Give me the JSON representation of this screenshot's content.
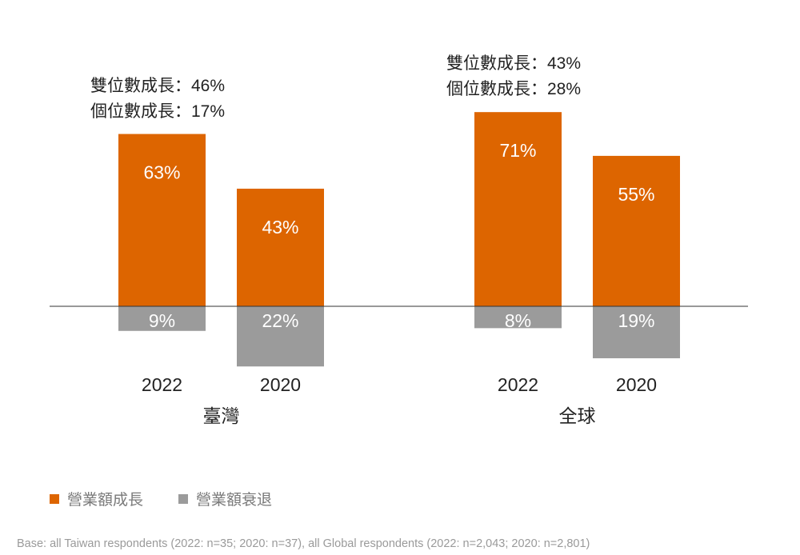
{
  "chart_data": {
    "type": "bar",
    "title": "",
    "groups": [
      {
        "name": "臺灣",
        "annotation": [
          "雙位數成長：46%",
          "個位數成長：17%"
        ]
      },
      {
        "name": "全球",
        "annotation": [
          "雙位數成長：43%",
          "個位數成長：28%"
        ]
      }
    ],
    "categories": [
      "2022",
      "2020"
    ],
    "series": [
      {
        "name": "營業額成長",
        "color": "#dd6500",
        "values": [
          [
            63,
            43
          ],
          [
            71,
            55
          ]
        ],
        "labels": [
          [
            "63%",
            "43%"
          ],
          [
            "71%",
            "55%"
          ]
        ]
      },
      {
        "name": "營業額衰退",
        "color": "#9b9b9b",
        "values": [
          [
            -9,
            -22
          ],
          [
            -8,
            -19
          ]
        ],
        "labels": [
          [
            "9%",
            "22%"
          ],
          [
            "8%",
            "19%"
          ]
        ]
      }
    ],
    "ylim": [
      -22,
      71
    ],
    "grid": false,
    "legend_position": "bottom-left"
  },
  "footer": "Base: all Taiwan respondents (2022: n=35; 2020: n=37), all Global respondents (2022: n=2,043; 2020: n=2,801)"
}
